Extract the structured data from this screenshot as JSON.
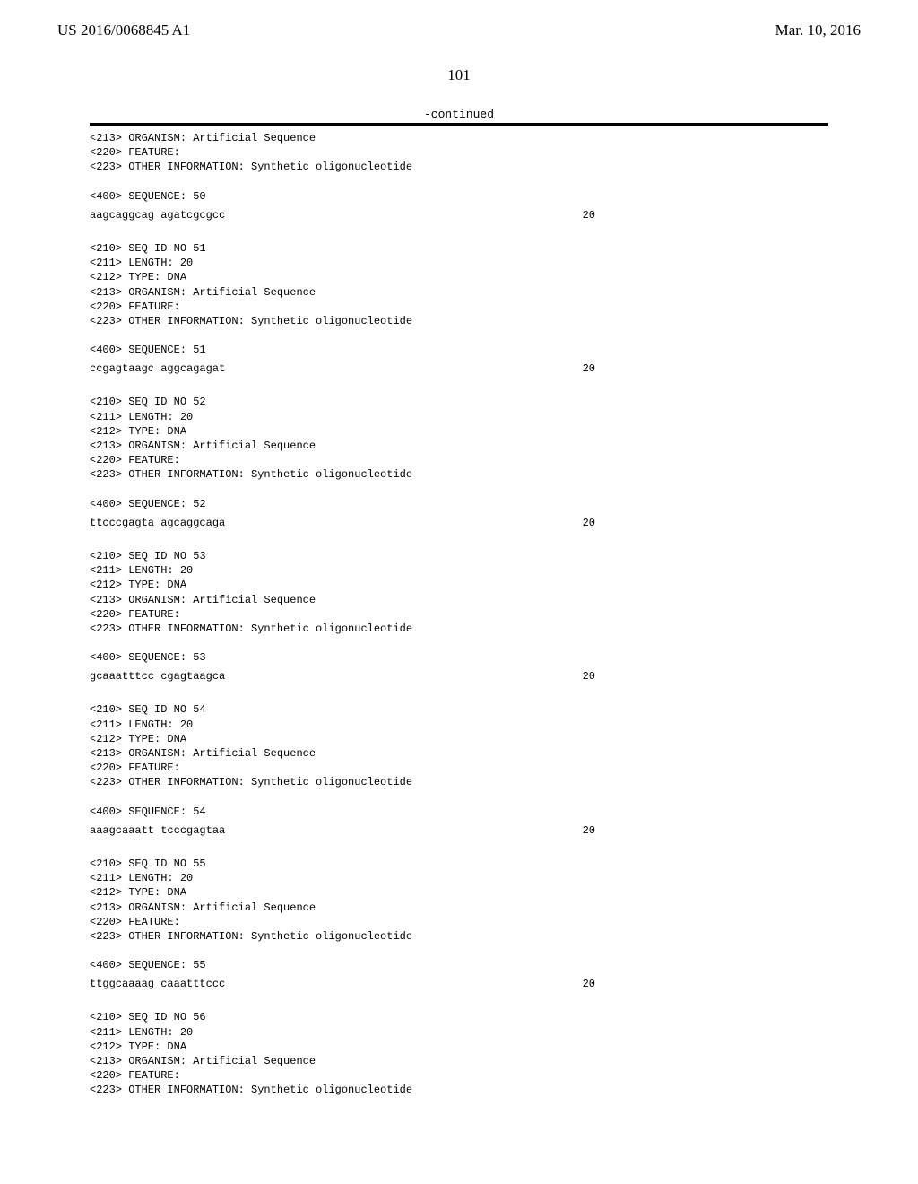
{
  "header": {
    "pubnum": "US 2016/0068845 A1",
    "pubdate": "Mar. 10, 2016"
  },
  "page_number": "101",
  "continued_label": "-continued",
  "top_block": {
    "lines": [
      "<213> ORGANISM: Artificial Sequence",
      "<220> FEATURE:",
      "<223> OTHER INFORMATION: Synthetic oligonucleotide"
    ],
    "seq_header": "<400> SEQUENCE: 50",
    "sequence": "aagcaggcag agatcgcgcc",
    "length": "20"
  },
  "entries": [
    {
      "id": "51",
      "lines": [
        "<210> SEQ ID NO 51",
        "<211> LENGTH: 20",
        "<212> TYPE: DNA",
        "<213> ORGANISM: Artificial Sequence",
        "<220> FEATURE:",
        "<223> OTHER INFORMATION: Synthetic oligonucleotide"
      ],
      "seq_header": "<400> SEQUENCE: 51",
      "sequence": "ccgagtaagc aggcagagat",
      "length": "20"
    },
    {
      "id": "52",
      "lines": [
        "<210> SEQ ID NO 52",
        "<211> LENGTH: 20",
        "<212> TYPE: DNA",
        "<213> ORGANISM: Artificial Sequence",
        "<220> FEATURE:",
        "<223> OTHER INFORMATION: Synthetic oligonucleotide"
      ],
      "seq_header": "<400> SEQUENCE: 52",
      "sequence": "ttcccgagta agcaggcaga",
      "length": "20"
    },
    {
      "id": "53",
      "lines": [
        "<210> SEQ ID NO 53",
        "<211> LENGTH: 20",
        "<212> TYPE: DNA",
        "<213> ORGANISM: Artificial Sequence",
        "<220> FEATURE:",
        "<223> OTHER INFORMATION: Synthetic oligonucleotide"
      ],
      "seq_header": "<400> SEQUENCE: 53",
      "sequence": "gcaaatttcc cgagtaagca",
      "length": "20"
    },
    {
      "id": "54",
      "lines": [
        "<210> SEQ ID NO 54",
        "<211> LENGTH: 20",
        "<212> TYPE: DNA",
        "<213> ORGANISM: Artificial Sequence",
        "<220> FEATURE:",
        "<223> OTHER INFORMATION: Synthetic oligonucleotide"
      ],
      "seq_header": "<400> SEQUENCE: 54",
      "sequence": "aaagcaaatt tcccgagtaa",
      "length": "20"
    },
    {
      "id": "55",
      "lines": [
        "<210> SEQ ID NO 55",
        "<211> LENGTH: 20",
        "<212> TYPE: DNA",
        "<213> ORGANISM: Artificial Sequence",
        "<220> FEATURE:",
        "<223> OTHER INFORMATION: Synthetic oligonucleotide"
      ],
      "seq_header": "<400> SEQUENCE: 55",
      "sequence": "ttggcaaaag caaatttccc",
      "length": "20"
    },
    {
      "id": "56",
      "lines": [
        "<210> SEQ ID NO 56",
        "<211> LENGTH: 20",
        "<212> TYPE: DNA",
        "<213> ORGANISM: Artificial Sequence",
        "<220> FEATURE:",
        "<223> OTHER INFORMATION: Synthetic oligonucleotide"
      ],
      "seq_header": "",
      "sequence": "",
      "length": ""
    }
  ]
}
